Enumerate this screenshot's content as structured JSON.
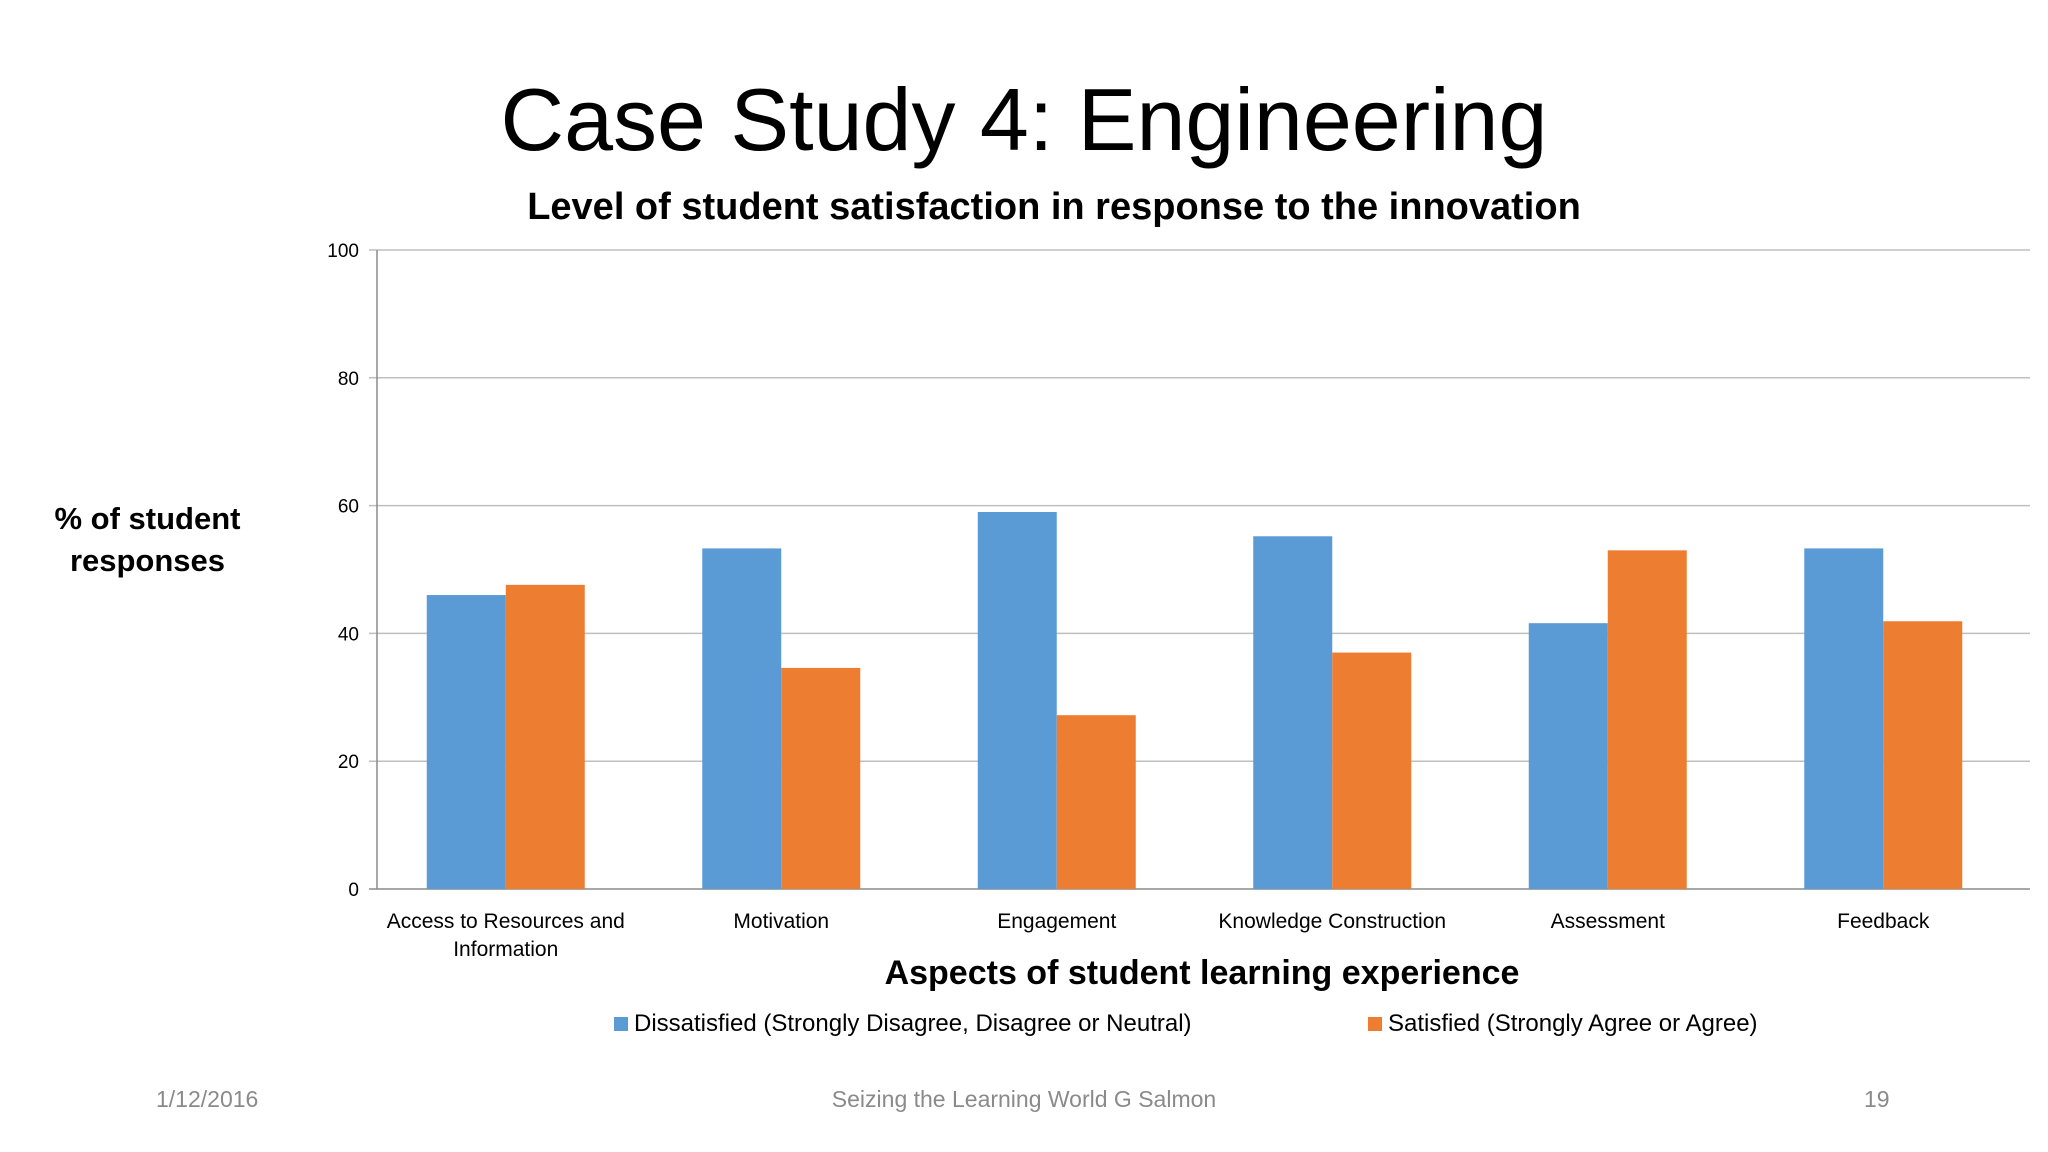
{
  "slide": {
    "title": "Case Study 4: Engineering",
    "footer_date": "1/12/2016",
    "footer_center": "Seizing the Learning World G Salmon",
    "page_number": "19"
  },
  "colors": {
    "dissatisfied": "#5b9bd5",
    "satisfied": "#ed7d31",
    "grid": "#bfbfbf",
    "axis": "#8c8c8c"
  },
  "chart_data": {
    "type": "bar",
    "title": "Level of student satisfaction in response to the innovation",
    "xlabel": "Aspects of student learning experience",
    "ylabel": "% of student responses",
    "ylim": [
      0,
      100
    ],
    "yticks": [
      0,
      20,
      40,
      60,
      80,
      100
    ],
    "grid": true,
    "legend_position": "bottom",
    "categories": [
      "Access to Resources and Information",
      "Motivation",
      "Engagement",
      "Knowledge Construction",
      "Assessment",
      "Feedback"
    ],
    "series": [
      {
        "name": "Dissatisfied (Strongly Disagree, Disagree or Neutral)",
        "values": [
          46,
          53.3,
          59,
          55.2,
          41.6,
          53.3
        ]
      },
      {
        "name": "Satisfied (Strongly Agree or Agree)",
        "values": [
          47.6,
          34.6,
          27.2,
          37,
          53,
          41.9
        ]
      }
    ]
  }
}
